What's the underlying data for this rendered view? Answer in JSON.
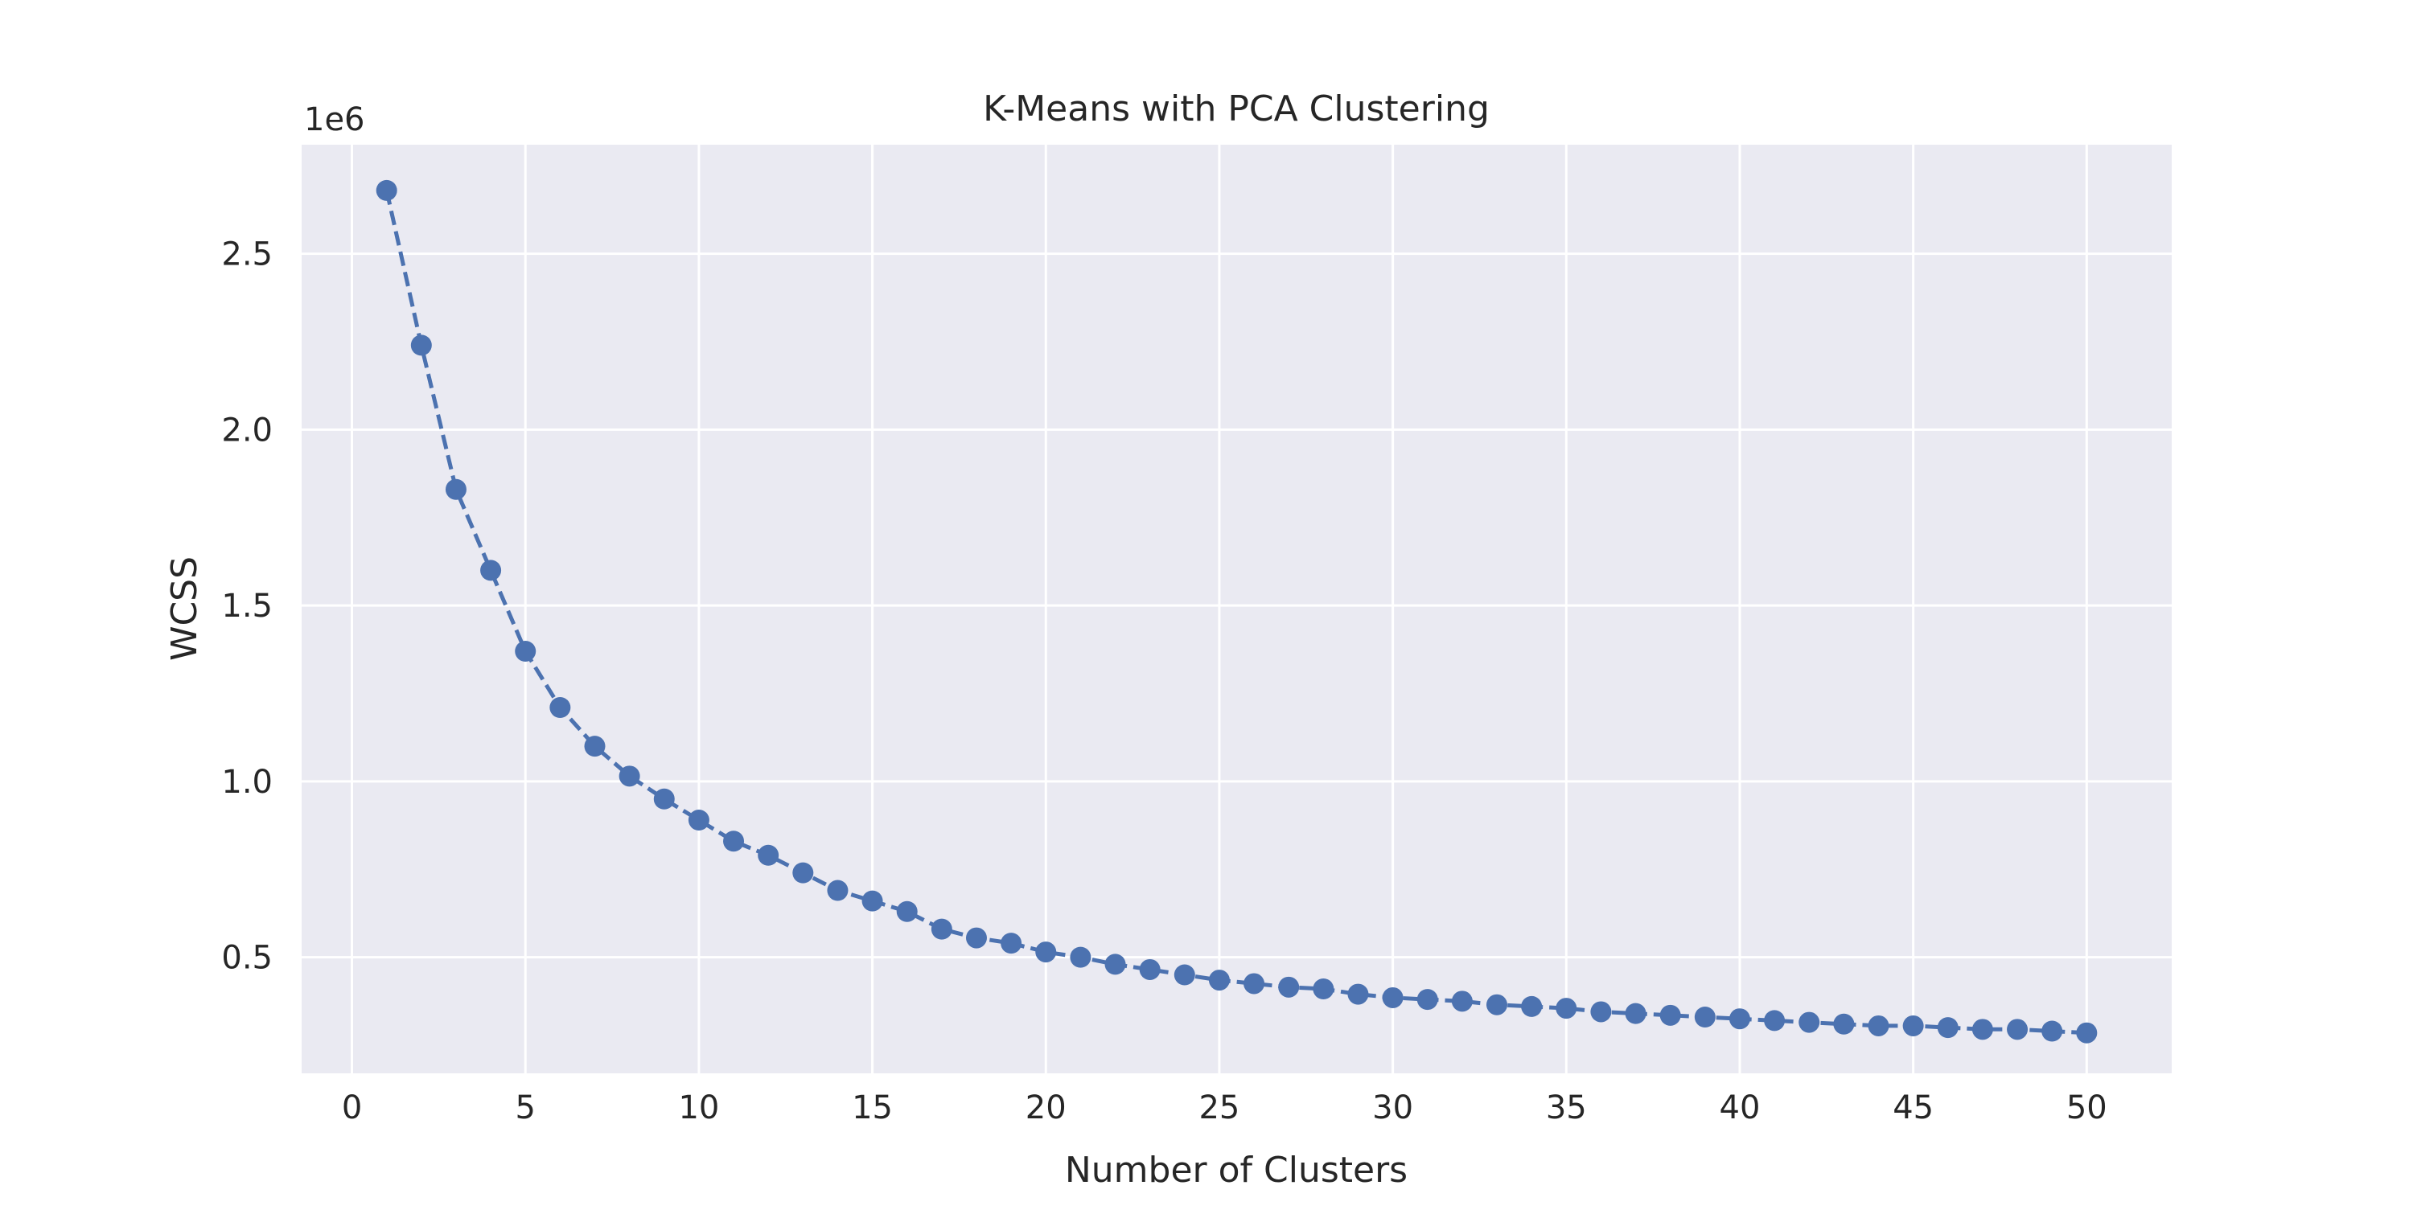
{
  "chart_data": {
    "type": "line",
    "title": "K-Means with PCA Clustering",
    "xlabel": "Number of Clusters",
    "ylabel": "WCSS",
    "y_offset_label": "1e6",
    "xlim": [
      -1.45,
      52.45
    ],
    "ylim": [
      0.17,
      2.81
    ],
    "y_scale_factor": 1000000,
    "x_ticks": [
      0,
      5,
      10,
      15,
      20,
      25,
      30,
      35,
      40,
      45,
      50
    ],
    "y_ticks": [
      0.5,
      1.0,
      1.5,
      2.0,
      2.5
    ],
    "x_tick_labels": [
      "0",
      "5",
      "10",
      "15",
      "20",
      "25",
      "30",
      "35",
      "40",
      "45",
      "50"
    ],
    "y_tick_labels": [
      "0.5",
      "1.0",
      "1.5",
      "2.0",
      "2.5"
    ],
    "grid": true,
    "line_style": "dashed",
    "marker": "circle",
    "colors": {
      "series": "#4C72B0",
      "plot_background": "#EAEAF2",
      "grid": "#FFFFFF",
      "text": "#262626"
    },
    "series": [
      {
        "x": [
          1,
          2,
          3,
          4,
          5,
          6,
          7,
          8,
          9,
          10,
          11,
          12,
          13,
          14,
          15,
          16,
          17,
          18,
          19,
          20,
          21,
          22,
          23,
          24,
          25,
          26,
          27,
          28,
          29,
          30,
          31,
          32,
          33,
          34,
          35,
          36,
          37,
          38,
          39,
          40,
          41,
          42,
          43,
          44,
          45,
          46,
          47,
          48,
          49,
          50
        ],
        "y": [
          2.68,
          2.24,
          1.83,
          1.6,
          1.37,
          1.21,
          1.1,
          1.015,
          0.95,
          0.89,
          0.83,
          0.79,
          0.74,
          0.69,
          0.66,
          0.63,
          0.58,
          0.555,
          0.54,
          0.515,
          0.5,
          0.48,
          0.465,
          0.45,
          0.435,
          0.425,
          0.415,
          0.41,
          0.395,
          0.385,
          0.38,
          0.375,
          0.365,
          0.36,
          0.355,
          0.345,
          0.34,
          0.335,
          0.33,
          0.325,
          0.32,
          0.315,
          0.31,
          0.305,
          0.305,
          0.3,
          0.295,
          0.295,
          0.29,
          0.285
        ]
      }
    ]
  }
}
